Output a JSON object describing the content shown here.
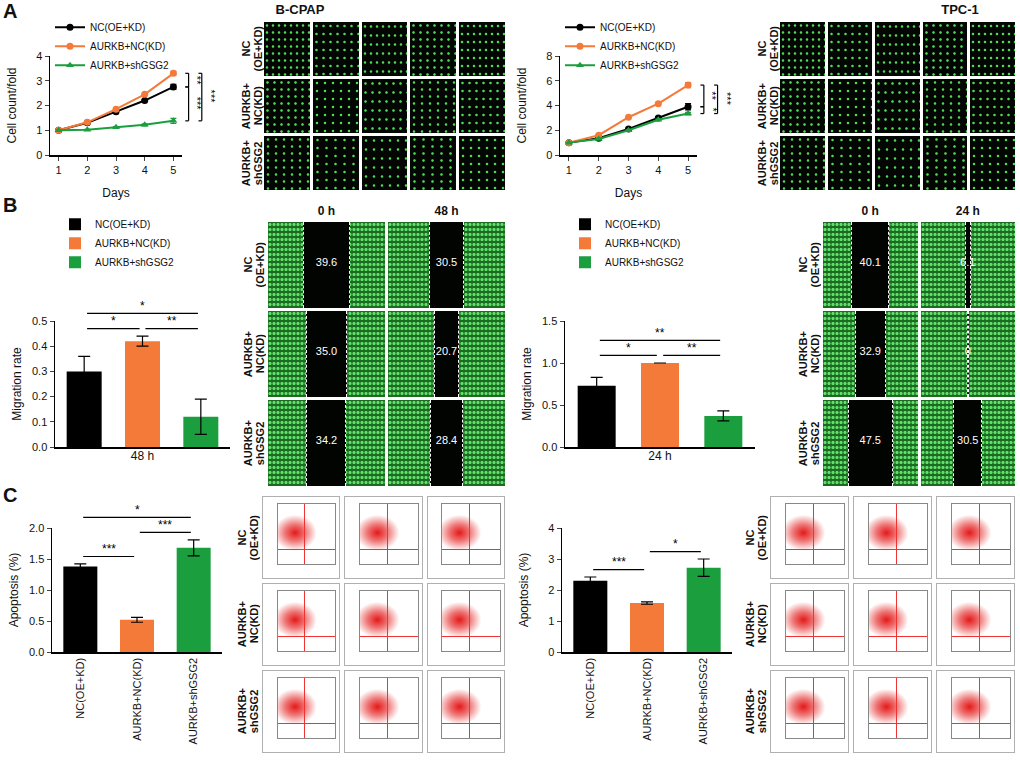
{
  "panel_letters": [
    "A",
    "B",
    "C"
  ],
  "image_panels": {
    "cell_lines": [
      "B-CPAP",
      "TPC-1"
    ],
    "row_labels": [
      [
        "NC",
        "(OE+KD)"
      ],
      [
        "AURKB+",
        "NC(KD)"
      ],
      [
        "AURKB+",
        "shGSG2"
      ]
    ],
    "wound": [
      {
        "times": [
          "0 h",
          "48 h"
        ],
        "gaps": [
          [
            "39.6",
            "30.5"
          ],
          [
            "35.0",
            "20.7"
          ],
          [
            "34.2",
            "28.4"
          ]
        ]
      },
      {
        "times": [
          "0 h",
          "24 h"
        ],
        "gaps": [
          [
            "40.1",
            "6.1"
          ],
          [
            "32.9",
            "0"
          ],
          [
            "47.5",
            "30.5"
          ]
        ]
      }
    ]
  },
  "chart_data": [
    {
      "type": "line",
      "x_label": "Days",
      "y_label": "Cell count/fold",
      "x": [
        1,
        2,
        3,
        4,
        5
      ],
      "xlim": [
        0.7,
        5.3
      ],
      "xticks": [
        1,
        2,
        3,
        4,
        5
      ],
      "ylim": [
        0,
        4
      ],
      "yticks": [
        0,
        1,
        2,
        3,
        4
      ],
      "grid": false,
      "legend": "top left",
      "series": [
        {
          "name": "NC(OE+KD)",
          "color": "#000000",
          "marker": "circle",
          "values": [
            1,
            1.3,
            1.75,
            2.2,
            2.75
          ],
          "errors": [
            0.02,
            0.03,
            0.04,
            0.04,
            0.1
          ]
        },
        {
          "name": "AURKB+NC(KD)",
          "color": "#f47a3a",
          "marker": "circle",
          "values": [
            1,
            1.32,
            1.85,
            2.45,
            3.3
          ],
          "errors": [
            0.02,
            0.03,
            0.04,
            0.04,
            0.08
          ]
        },
        {
          "name": "AURKB+shGSG2",
          "color": "#1b9e3e",
          "marker": "triangle-up",
          "values": [
            1,
            1.02,
            1.12,
            1.22,
            1.38
          ],
          "errors": [
            0.02,
            0.02,
            0.03,
            0.04,
            0.1
          ]
        }
      ],
      "annotations": [
        {
          "text": "**",
          "between": [
            0,
            1
          ]
        },
        {
          "text": "***",
          "between": [
            0,
            2
          ]
        },
        {
          "text": "***",
          "between": [
            1,
            2
          ]
        }
      ]
    },
    {
      "type": "line",
      "x_label": "Days",
      "y_label": "Cell count/fold",
      "x": [
        1,
        2,
        3,
        4,
        5
      ],
      "xlim": [
        0.7,
        5.3
      ],
      "xticks": [
        1,
        2,
        3,
        4,
        5
      ],
      "ylim": [
        0,
        8
      ],
      "yticks": [
        0,
        2,
        4,
        6,
        8
      ],
      "grid": false,
      "legend": "top left",
      "series": [
        {
          "name": "NC(OE+KD)",
          "color": "#000000",
          "marker": "circle",
          "values": [
            1,
            1.35,
            2.1,
            3.0,
            3.9
          ],
          "errors": [
            0.03,
            0.05,
            0.06,
            0.08,
            0.25
          ]
        },
        {
          "name": "AURKB+NC(KD)",
          "color": "#f47a3a",
          "marker": "circle",
          "values": [
            1,
            1.6,
            3.05,
            4.15,
            5.65
          ],
          "errors": [
            0.03,
            0.05,
            0.06,
            0.1,
            0.2
          ]
        },
        {
          "name": "AURKB+shGSG2",
          "color": "#1b9e3e",
          "marker": "triangle-up",
          "values": [
            1,
            1.3,
            2.0,
            2.85,
            3.35
          ],
          "errors": [
            0.03,
            0.04,
            0.05,
            0.06,
            0.1
          ]
        }
      ],
      "annotations": [
        {
          "text": "**",
          "between": [
            0,
            1
          ]
        },
        {
          "text": "*",
          "between": [
            0,
            2
          ]
        },
        {
          "text": "***",
          "between": [
            1,
            2
          ]
        }
      ]
    },
    {
      "type": "bar",
      "x_label": "48 h",
      "y_label": "Migration rate",
      "categories": [
        "NC(OE+KD)",
        "AURKB+NC(KD)",
        "AURKB+shGSG2"
      ],
      "values": [
        0.3,
        0.42,
        0.12
      ],
      "errors": [
        0.06,
        0.02,
        0.07
      ],
      "colors": [
        "#000000",
        "#f47a3a",
        "#1b9e3e"
      ],
      "ylim": [
        0,
        0.5
      ],
      "yticks": [
        {
          "value": 0,
          "label": "0.0"
        },
        0.1,
        0.2,
        0.3,
        0.4,
        0.5
      ],
      "grid": false,
      "legend": "top left",
      "tick_labels": "y",
      "annotations": [
        {
          "text": "*",
          "between": [
            0,
            1
          ]
        },
        {
          "text": "*",
          "between": [
            0,
            2
          ]
        },
        {
          "text": "**",
          "between": [
            1,
            2
          ]
        }
      ]
    },
    {
      "type": "bar",
      "x_label": "24 h",
      "y_label": "Migration rate",
      "categories": [
        "NC(OE+KD)",
        "AURKB+NC(KD)",
        "AURKB+shGSG2"
      ],
      "values": [
        0.73,
        1.0,
        0.37
      ],
      "errors": [
        0.1,
        0.0,
        0.06
      ],
      "colors": [
        "#000000",
        "#f47a3a",
        "#1b9e3e"
      ],
      "ylim": [
        0,
        1.5
      ],
      "yticks": [
        {
          "value": 0,
          "label": "0.0"
        },
        0.5,
        {
          "value": 1,
          "label": "1.0"
        },
        1.5
      ],
      "grid": false,
      "legend": "top left",
      "tick_labels": "y",
      "annotations": [
        {
          "text": "*",
          "between": [
            0,
            1
          ]
        },
        {
          "text": "**",
          "between": [
            0,
            2
          ]
        },
        {
          "text": "**",
          "between": [
            1,
            2
          ]
        }
      ]
    },
    {
      "type": "bar",
      "y_label": "Apoptosis (%)",
      "categories": [
        "NC(OE+KD)",
        "AURKB+NC(KD)",
        "AURKB+shGSG2"
      ],
      "values": [
        1.38,
        0.52,
        1.68
      ],
      "errors": [
        0.04,
        0.04,
        0.13
      ],
      "colors": [
        "#000000",
        "#f47a3a",
        "#1b9e3e"
      ],
      "ylim": [
        0,
        2
      ],
      "yticks": [
        {
          "value": 0,
          "label": "0.0"
        },
        0.5,
        {
          "value": 1,
          "label": "1.0"
        },
        1.5,
        {
          "value": 2,
          "label": "2.0"
        }
      ],
      "grid": false,
      "annotations": [
        {
          "text": "***",
          "between": [
            0,
            1
          ]
        },
        {
          "text": "*",
          "between": [
            0,
            2
          ]
        },
        {
          "text": "***",
          "between": [
            1,
            2
          ]
        }
      ]
    },
    {
      "type": "bar",
      "y_label": "Apoptosis (%)",
      "categories": [
        "NC(OE+KD)",
        "AURKB+NC(KD)",
        "AURKB+shGSG2"
      ],
      "values": [
        2.3,
        1.58,
        2.72
      ],
      "errors": [
        0.12,
        0.04,
        0.28
      ],
      "colors": [
        "#000000",
        "#f47a3a",
        "#1b9e3e"
      ],
      "ylim": [
        0,
        4
      ],
      "yticks": [
        0,
        1,
        2,
        3,
        4
      ],
      "grid": false,
      "annotations": [
        {
          "text": "***",
          "between": [
            0,
            1
          ]
        },
        {
          "text": "*",
          "between": [
            1,
            2
          ]
        }
      ]
    }
  ]
}
